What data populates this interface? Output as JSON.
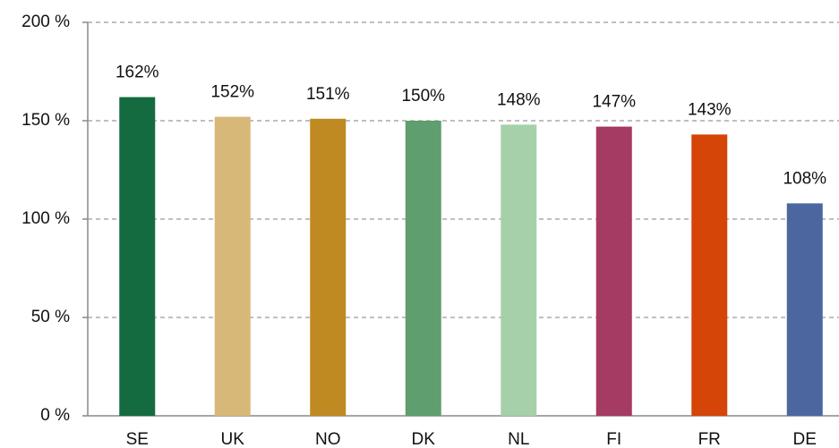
{
  "chart_data": {
    "type": "bar",
    "categories": [
      "SE",
      "UK",
      "NO",
      "DK",
      "NL",
      "FI",
      "FR",
      "DE"
    ],
    "values": [
      162,
      152,
      151,
      150,
      148,
      147,
      143,
      108
    ],
    "value_labels": [
      "162%",
      "152%",
      "151%",
      "150%",
      "148%",
      "147%",
      "143%",
      "108%"
    ],
    "colors": [
      "#156b40",
      "#d8b878",
      "#c08a22",
      "#5f9e6e",
      "#a5d0aa",
      "#a53a63",
      "#d54507",
      "#4c67a0"
    ],
    "ylim": [
      0,
      200
    ],
    "yticks": [
      {
        "value": 0,
        "label": "0 %"
      },
      {
        "value": 50,
        "label": "50 %"
      },
      {
        "value": 100,
        "label": "100 %"
      },
      {
        "value": 150,
        "label": "150 %"
      },
      {
        "value": 200,
        "label": "200 %"
      }
    ],
    "grid": true
  }
}
